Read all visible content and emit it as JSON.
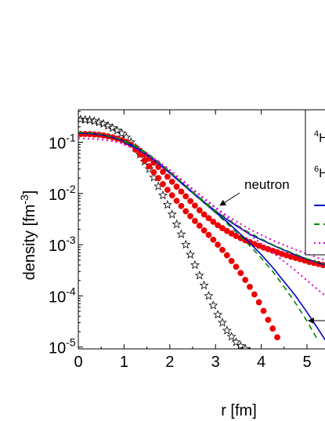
{
  "chart_data": {
    "type": "scatter",
    "xlabel": "r [fm]",
    "ylabel": "density [fm",
    "ylabel_sup": "-3",
    "ylabel_close": "]",
    "x_range": [
      0,
      5.5
    ],
    "y_range": [
      1e-05,
      0.5
    ],
    "y_scale": "log",
    "x_ticks": [
      "0",
      "1",
      "2",
      "3",
      "4",
      "5"
    ],
    "y_ticks": [
      {
        "base": "10",
        "exp": "-1",
        "value": 0.1
      },
      {
        "base": "10",
        "exp": "-2",
        "value": 0.01
      },
      {
        "base": "10",
        "exp": "-3",
        "value": 0.001
      },
      {
        "base": "10",
        "exp": "-4",
        "value": 0.0001
      },
      {
        "base": "10",
        "exp": "-5",
        "value": 1e-05
      }
    ],
    "legend_partial": [
      {
        "sup": "4",
        "text": "H"
      },
      {
        "sup": "6",
        "text": "H"
      }
    ],
    "annotations": [
      {
        "text": "neutron",
        "x": 3.75,
        "y": 0.0125
      }
    ],
    "colors": {
      "blue": "#0000cc",
      "green": "#008800",
      "magenta": "#dd00cc",
      "red": "#ee0000"
    },
    "series": [
      {
        "style": "star",
        "x": [
          0.05,
          0.15,
          0.25,
          0.35,
          0.45,
          0.55,
          0.65,
          0.75,
          0.85,
          0.95,
          1.05,
          1.15,
          1.25,
          1.35,
          1.45,
          1.55,
          1.65,
          1.75,
          1.85,
          1.95,
          2.05,
          2.15,
          2.25,
          2.35,
          2.45,
          2.55,
          2.65,
          2.75,
          2.85,
          2.95,
          3.05,
          3.15,
          3.25,
          3.35,
          3.45,
          3.55,
          3.65,
          3.75,
          3.85,
          3.95,
          4.05,
          4.15,
          4.25
        ],
        "y": [
          0.28,
          0.275,
          0.27,
          0.26,
          0.245,
          0.23,
          0.21,
          0.19,
          0.17,
          0.15,
          0.125,
          0.1,
          0.078,
          0.058,
          0.042,
          0.03,
          0.0205,
          0.0138,
          0.0092,
          0.006,
          0.0039,
          0.0025,
          0.0016,
          0.001,
          0.00064,
          0.0004,
          0.00025,
          0.00016,
          0.0001,
          6.5e-05,
          4.3e-05,
          3e-05,
          2.1e-05,
          1.6e-05,
          1.25e-05,
          1.05e-05,
          9.2e-06,
          8.2e-06,
          7.5e-06,
          7e-06,
          6.6e-06,
          6.3e-06,
          6e-06
        ]
      },
      {
        "style": "dot",
        "x": [
          0.05,
          0.15,
          0.25,
          0.35,
          0.45,
          0.55,
          0.65,
          0.75,
          0.85,
          0.95,
          1.05,
          1.15,
          1.25,
          1.35,
          1.45,
          1.55,
          1.65,
          1.75,
          1.85,
          1.95,
          2.05,
          2.15,
          2.25,
          2.35,
          2.45,
          2.55,
          2.65,
          2.75,
          2.85,
          2.95,
          3.05,
          3.15,
          3.25,
          3.35,
          3.45,
          3.55,
          3.65,
          3.75,
          3.85,
          3.95,
          4.05,
          4.15,
          4.25,
          4.35,
          4.45,
          4.55,
          4.65,
          4.75,
          4.85,
          4.95,
          5.05,
          5.15,
          5.25,
          5.35,
          5.45
        ],
        "y": [
          0.145,
          0.145,
          0.144,
          0.142,
          0.14,
          0.136,
          0.131,
          0.125,
          0.118,
          0.11,
          0.1,
          0.09,
          0.079,
          0.068,
          0.058,
          0.048,
          0.04,
          0.033,
          0.0265,
          0.0213,
          0.017,
          0.0136,
          0.0109,
          0.0088,
          0.0071,
          0.0058,
          0.0047,
          0.0039,
          0.0033,
          0.0028,
          0.0024,
          0.0021,
          0.00185,
          0.00165,
          0.00148,
          0.00134,
          0.00122,
          0.00112,
          0.00103,
          0.00095,
          0.00088,
          0.00082,
          0.00076,
          0.00071,
          0.00066,
          0.00062,
          0.00058,
          0.00055,
          0.00052,
          0.00049,
          0.00046,
          0.00044,
          0.00042,
          0.0004,
          0.00038
        ]
      },
      {
        "style": "dot",
        "x": [
          1.25,
          1.35,
          1.45,
          1.55,
          1.65,
          1.75,
          1.85,
          1.95,
          2.05,
          2.15,
          2.25,
          2.35,
          2.45,
          2.55,
          2.65,
          2.75,
          2.85,
          2.95,
          3.05,
          3.15,
          3.25,
          3.35,
          3.45,
          3.55,
          3.65,
          3.75,
          3.85,
          3.95,
          4.05,
          4.15,
          4.25,
          4.35
        ],
        "y": [
          0.072,
          0.058,
          0.044,
          0.034,
          0.026,
          0.02,
          0.0152,
          0.0118,
          0.0092,
          0.0072,
          0.0057,
          0.0045,
          0.0036,
          0.0029,
          0.00235,
          0.0019,
          0.00155,
          0.00125,
          0.001,
          0.00079,
          0.00062,
          0.00048,
          0.00037,
          0.00028,
          0.000205,
          0.00015,
          0.000107,
          7.5e-05,
          5.1e-05,
          3.4e-05,
          2.3e-05,
          1.55e-05
        ]
      },
      {
        "style": "solid",
        "color": "#0000cc",
        "x": [
          0,
          0.25,
          0.5,
          0.75,
          1,
          1.25,
          1.5,
          1.75,
          2,
          2.25,
          2.5,
          2.75,
          3,
          3.25,
          3.5,
          3.75,
          4,
          4.25,
          4.5,
          4.75,
          5,
          5.25,
          5.5
        ],
        "y": [
          0.15,
          0.148,
          0.14,
          0.125,
          0.105,
          0.082,
          0.059,
          0.04,
          0.026,
          0.0165,
          0.0105,
          0.0068,
          0.0045,
          0.0031,
          0.0022,
          0.0016,
          0.00125,
          0.00098,
          0.00078,
          0.00063,
          0.00052,
          0.00044,
          0.00038
        ]
      },
      {
        "style": "dashed",
        "color": "#008800",
        "x": [
          0,
          0.25,
          0.5,
          0.75,
          1,
          1.25,
          1.5,
          1.75,
          2,
          2.25,
          2.5,
          2.75,
          3,
          3.25,
          3.5,
          3.75,
          4,
          4.25,
          4.5,
          4.75,
          5,
          5.25,
          5.5
        ],
        "y": [
          0.155,
          0.152,
          0.143,
          0.128,
          0.108,
          0.085,
          0.062,
          0.042,
          0.027,
          0.017,
          0.0108,
          0.007,
          0.0046,
          0.0032,
          0.0023,
          0.0017,
          0.0013,
          0.001,
          0.0008,
          0.00065,
          0.00053,
          0.00045,
          0.00039
        ]
      },
      {
        "style": "dotted",
        "color": "#dd00cc",
        "x": [
          0,
          0.25,
          0.5,
          0.75,
          1,
          1.25,
          1.5,
          1.75,
          2,
          2.25,
          2.5,
          2.75,
          3,
          3.25,
          3.5,
          3.75,
          4,
          4.25,
          4.5,
          4.75,
          5,
          5.25,
          5.5
        ],
        "y": [
          0.12,
          0.118,
          0.113,
          0.105,
          0.094,
          0.078,
          0.06,
          0.043,
          0.029,
          0.019,
          0.0124,
          0.0081,
          0.0054,
          0.0037,
          0.0027,
          0.002,
          0.00155,
          0.00122,
          0.00098,
          0.0008,
          0.00066,
          0.00055,
          0.00047
        ]
      },
      {
        "style": "solid",
        "color": "#0000cc",
        "x": [
          1.0,
          1.25,
          1.5,
          1.75,
          2,
          2.25,
          2.5,
          2.75,
          3,
          3.25,
          3.5,
          3.75,
          4,
          4.25,
          4.5,
          4.75,
          5,
          5.25,
          5.5
        ],
        "y": [
          0.1,
          0.078,
          0.056,
          0.038,
          0.025,
          0.016,
          0.0102,
          0.0066,
          0.0043,
          0.0028,
          0.00175,
          0.00108,
          0.00064,
          0.00036,
          0.00019,
          0.0001,
          4.8e-05,
          2.2e-05,
          1e-05
        ]
      },
      {
        "style": "dashed",
        "color": "#008800",
        "x": [
          1.0,
          1.25,
          1.5,
          1.75,
          2,
          2.25,
          2.5,
          2.75,
          3,
          3.25,
          3.5,
          3.75,
          4,
          4.25,
          4.5,
          4.75,
          5,
          5.25
        ],
        "y": [
          0.105,
          0.082,
          0.059,
          0.04,
          0.026,
          0.0165,
          0.0105,
          0.0066,
          0.0042,
          0.0026,
          0.0016,
          0.00095,
          0.00055,
          0.0003,
          0.00015,
          7.2e-05,
          3.2e-05,
          1.3e-05
        ]
      },
      {
        "style": "dotted",
        "color": "#dd00cc",
        "x": [
          1.0,
          1.25,
          1.5,
          1.75,
          2,
          2.25,
          2.5,
          2.75,
          3,
          3.25,
          3.5,
          3.75,
          4,
          4.25,
          4.5,
          4.75,
          5,
          5.25,
          5.5
        ],
        "y": [
          0.09,
          0.074,
          0.056,
          0.04,
          0.027,
          0.0178,
          0.0117,
          0.0077,
          0.0051,
          0.0034,
          0.0023,
          0.00155,
          0.00105,
          0.0007,
          0.00047,
          0.00031,
          0.0002,
          0.00013,
          8.5e-05
        ]
      }
    ]
  }
}
